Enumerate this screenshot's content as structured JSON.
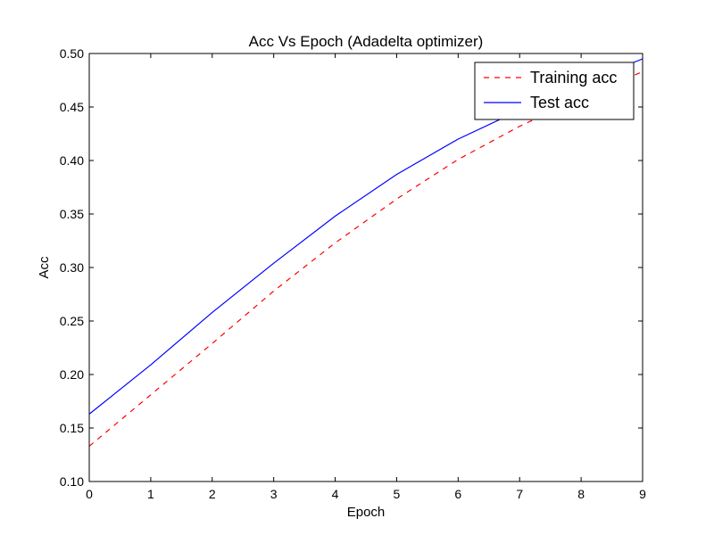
{
  "chart_data": {
    "type": "line",
    "title": "Acc Vs Epoch (Adadelta optimizer)",
    "xlabel": "Epoch",
    "ylabel": "Acc",
    "xlim": [
      0,
      9
    ],
    "ylim": [
      0.1,
      0.5
    ],
    "x_ticks": [
      "0",
      "1",
      "2",
      "3",
      "4",
      "5",
      "6",
      "7",
      "8",
      "9"
    ],
    "y_ticks": [
      "0.10",
      "0.15",
      "0.20",
      "0.25",
      "0.30",
      "0.35",
      "0.40",
      "0.45",
      "0.50"
    ],
    "x": [
      0,
      1,
      2,
      3,
      4,
      5,
      6,
      7,
      8,
      9
    ],
    "series": [
      {
        "name": "Training acc",
        "style": "dashed",
        "color": "#ff0000",
        "values": [
          0.133,
          0.181,
          0.229,
          0.278,
          0.323,
          0.364,
          0.401,
          0.432,
          0.459,
          0.483
        ]
      },
      {
        "name": "Test acc",
        "style": "solid",
        "color": "#0000ff",
        "values": [
          0.163,
          0.209,
          0.258,
          0.304,
          0.348,
          0.387,
          0.42,
          0.447,
          0.472,
          0.495
        ]
      }
    ],
    "grid": false,
    "legend_position": "top-right"
  }
}
